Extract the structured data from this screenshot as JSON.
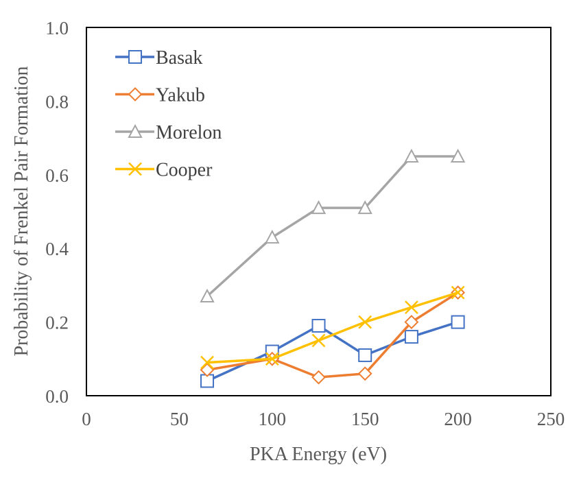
{
  "chart_data": {
    "type": "line",
    "title": "",
    "xlabel": "PKA Energy (eV)",
    "ylabel": "Probability of Frenkel Pair Formation",
    "xlim": [
      0,
      250
    ],
    "ylim": [
      0.0,
      1.0
    ],
    "xticks": [
      0,
      50,
      100,
      150,
      200,
      250
    ],
    "xtick_labels": [
      "0",
      "50",
      "100",
      "150",
      "200",
      "250"
    ],
    "yticks": [
      0.0,
      0.2,
      0.4,
      0.6,
      0.8,
      1.0
    ],
    "ytick_labels": [
      "0.0",
      "0.2",
      "0.4",
      "0.6",
      "0.8",
      "1.0"
    ],
    "grid": false,
    "legend_position": "top-left",
    "series": [
      {
        "name": "Basak",
        "color": "#4472C4",
        "marker": "square",
        "points": [
          [
            65,
            0.04
          ],
          [
            100,
            0.12
          ],
          [
            125,
            0.19
          ],
          [
            150,
            0.11
          ],
          [
            175,
            0.16
          ],
          [
            200,
            0.2
          ]
        ]
      },
      {
        "name": "Yakub",
        "color": "#ED7D31",
        "marker": "diamond",
        "points": [
          [
            65,
            0.07
          ],
          [
            100,
            0.1
          ],
          [
            125,
            0.05
          ],
          [
            150,
            0.06
          ],
          [
            175,
            0.2
          ],
          [
            200,
            0.28
          ]
        ]
      },
      {
        "name": "Morelon",
        "color": "#A5A5A5",
        "marker": "triangle",
        "points": [
          [
            65,
            0.27
          ],
          [
            100,
            0.43
          ],
          [
            125,
            0.51
          ],
          [
            150,
            0.51
          ],
          [
            175,
            0.65
          ],
          [
            200,
            0.65
          ]
        ]
      },
      {
        "name": "Cooper",
        "color": "#FFC000",
        "marker": "x",
        "points": [
          [
            65,
            0.09
          ],
          [
            100,
            0.1
          ],
          [
            125,
            0.15
          ],
          [
            150,
            0.2
          ],
          [
            175,
            0.24
          ],
          [
            200,
            0.28
          ]
        ]
      }
    ]
  }
}
